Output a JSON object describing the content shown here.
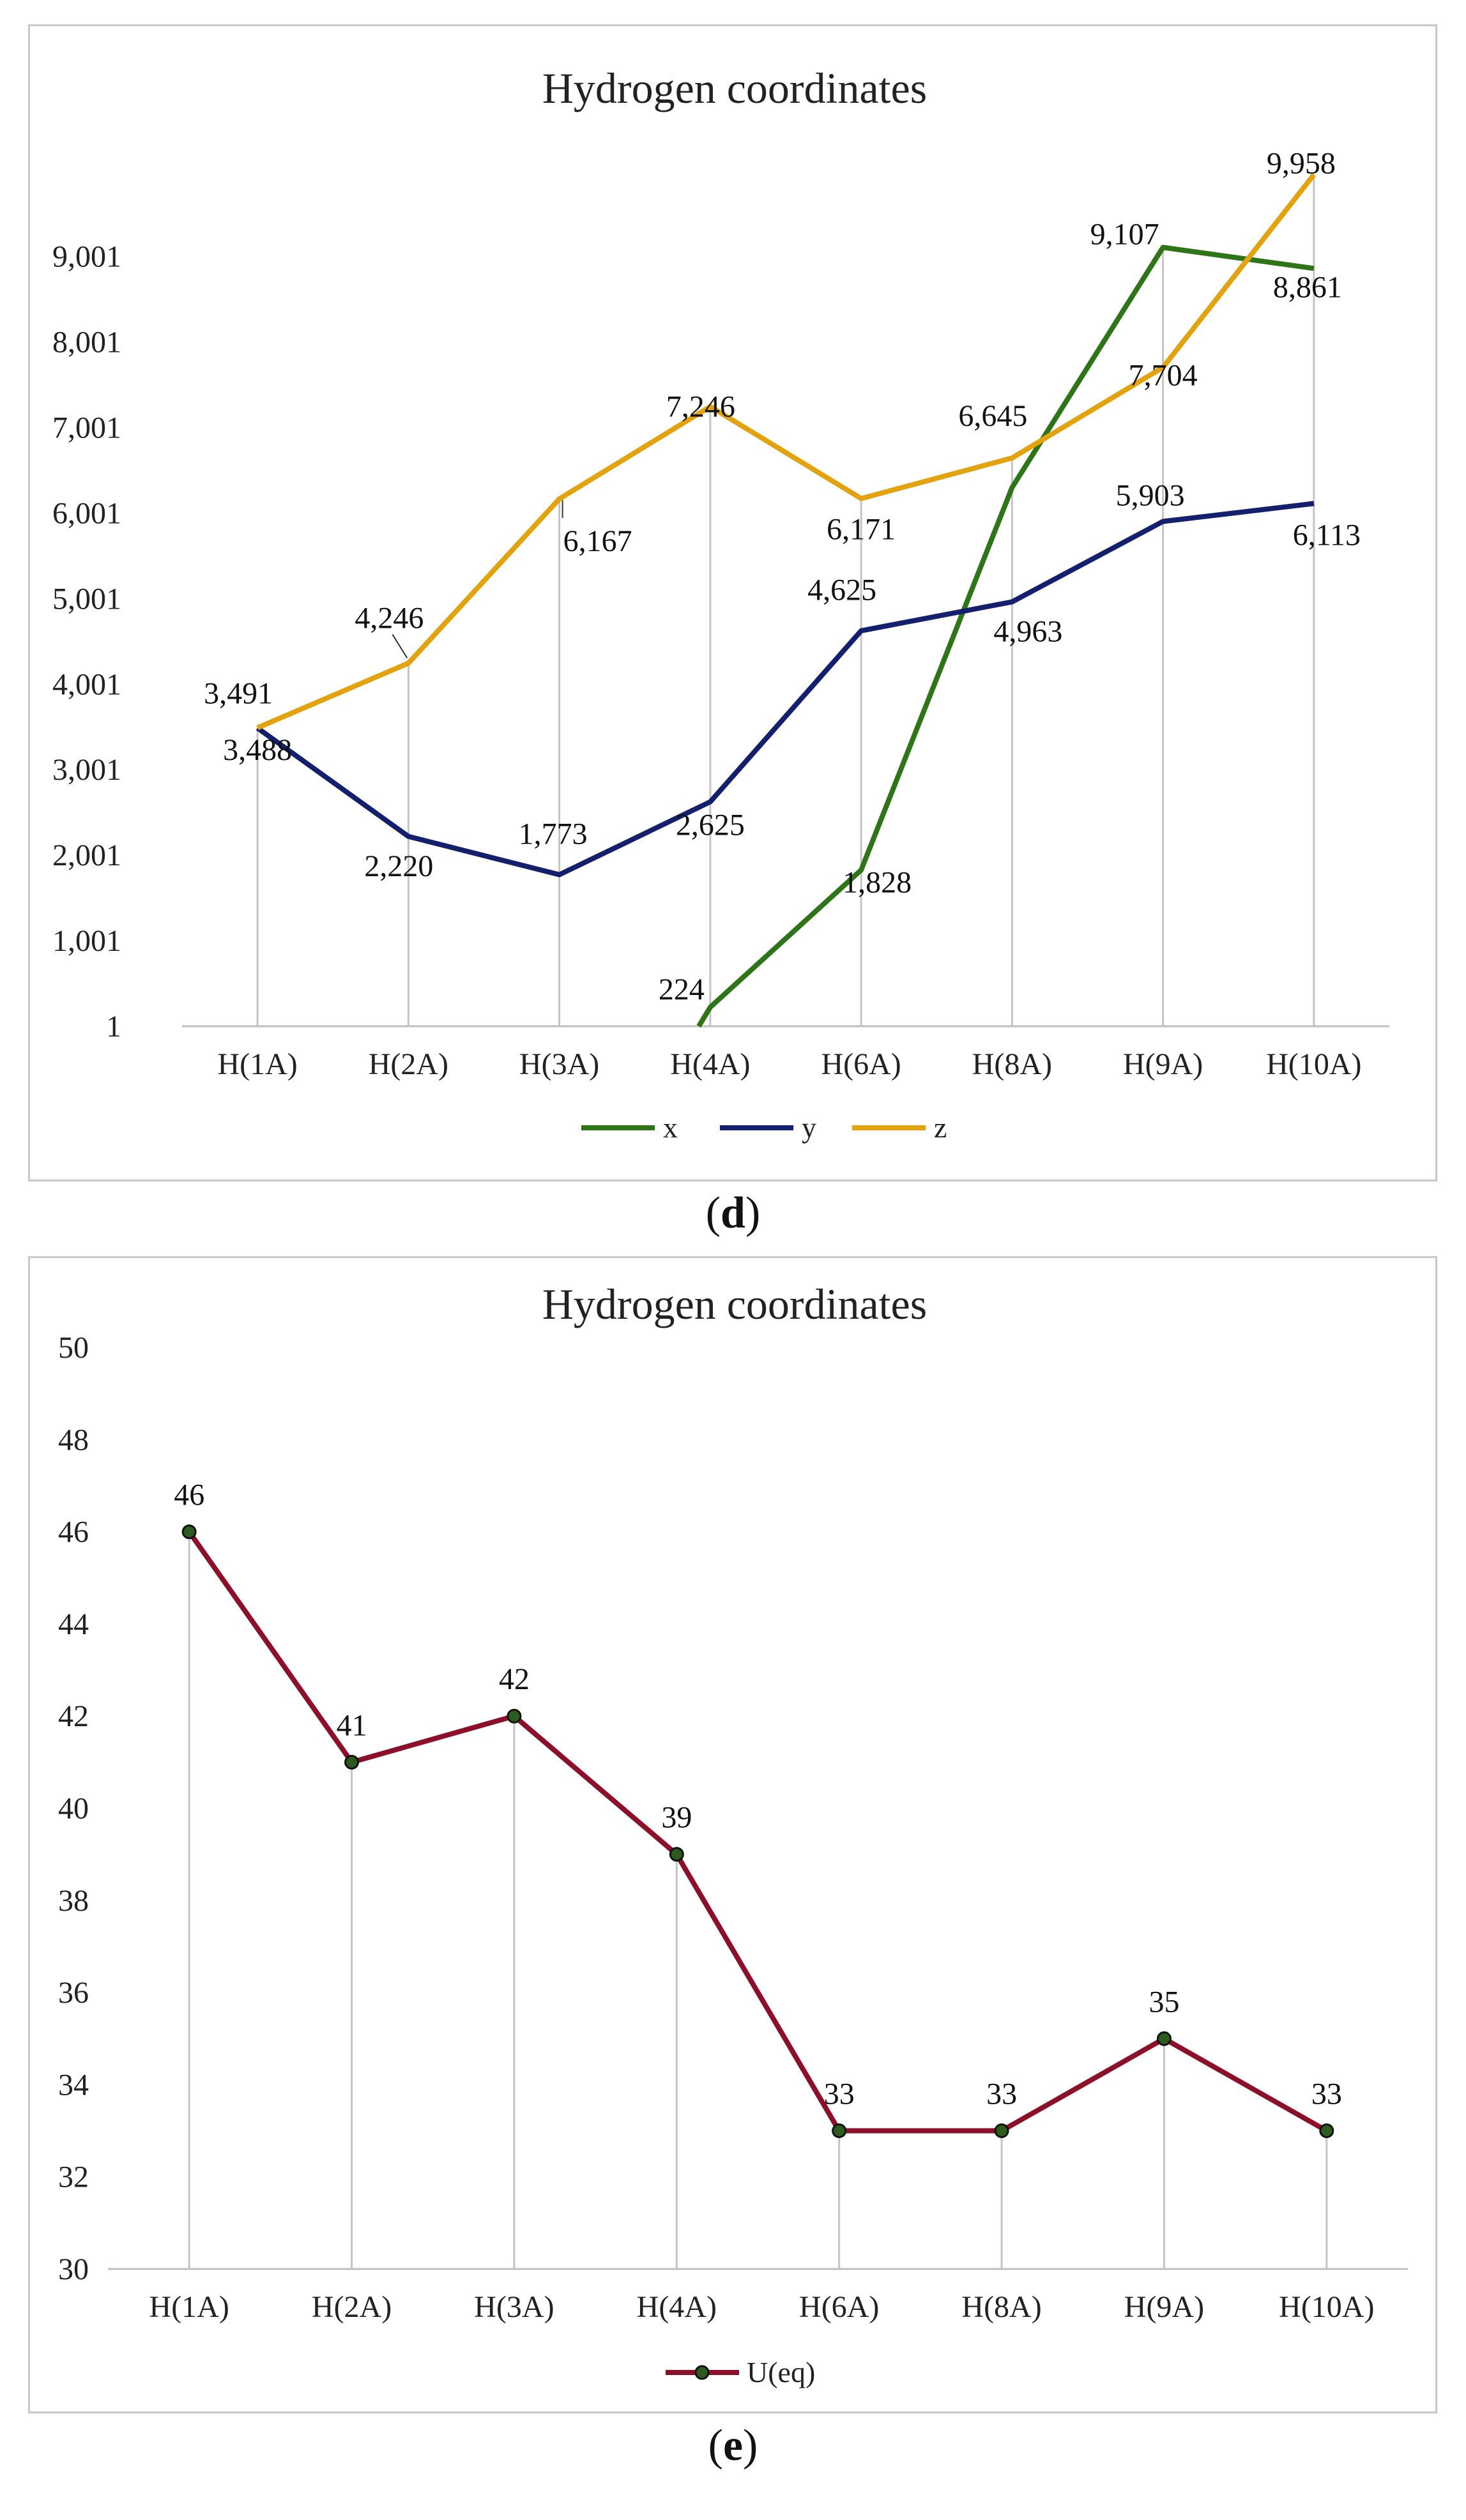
{
  "chart_data": [
    {
      "type": "line",
      "title": "Hydrogen coordinates",
      "categories": [
        "H(1A)",
        "H(2A)",
        "H(3A)",
        "H(4A)",
        "H(6A)",
        "H(8A)",
        "H(9A)",
        "H(10A)"
      ],
      "yticks": [
        "1",
        "1,001",
        "2,001",
        "3,001",
        "4,001",
        "5,001",
        "6,001",
        "7,001",
        "8,001",
        "9,001"
      ],
      "ylim": [
        1,
        10200
      ],
      "grid": "vertical drop lines",
      "legend_position": "bottom",
      "series": [
        {
          "name": "x",
          "color": "#2e7517",
          "values": [
            null,
            null,
            null,
            224,
            1828,
            6300,
            9107,
            8861
          ],
          "labels": [
            null,
            null,
            null,
            "224",
            "1,828",
            null,
            "9,107",
            "8,861"
          ]
        },
        {
          "name": "y",
          "color": "#14206e",
          "values": [
            3488,
            2220,
            1773,
            2625,
            4625,
            4963,
            5903,
            6113
          ],
          "labels": [
            "3,488",
            "2,220",
            "1,773",
            "2,625",
            "4,625",
            "4,963",
            "5,903",
            "6,113"
          ]
        },
        {
          "name": "z",
          "color": "#e3a30f",
          "values": [
            3491,
            4246,
            6167,
            7246,
            6171,
            6645,
            7704,
            9958
          ],
          "labels": [
            "3,491",
            "4,246",
            "6,167",
            "7,246",
            "6,171",
            "6,645",
            "7,704",
            "9,958"
          ]
        }
      ]
    },
    {
      "type": "line",
      "title": "Hydrogen coordinates",
      "categories": [
        "H(1A)",
        "H(2A)",
        "H(3A)",
        "H(4A)",
        "H(6A)",
        "H(8A)",
        "H(9A)",
        "H(10A)"
      ],
      "yticks": [
        "30",
        "32",
        "34",
        "36",
        "38",
        "40",
        "42",
        "44",
        "46",
        "48",
        "50"
      ],
      "ylim": [
        30,
        50
      ],
      "grid": "vertical drop lines",
      "legend_position": "bottom",
      "series": [
        {
          "name": "U(eq)",
          "color": "#8c1029",
          "marker_color": "#2b5c1e",
          "values": [
            46,
            41,
            42,
            39,
            33,
            33,
            35,
            33
          ],
          "labels": [
            "46",
            "41",
            "42",
            "39",
            "33",
            "33",
            "35",
            "33"
          ]
        }
      ]
    }
  ],
  "captions": {
    "d": "d",
    "e": "e"
  }
}
